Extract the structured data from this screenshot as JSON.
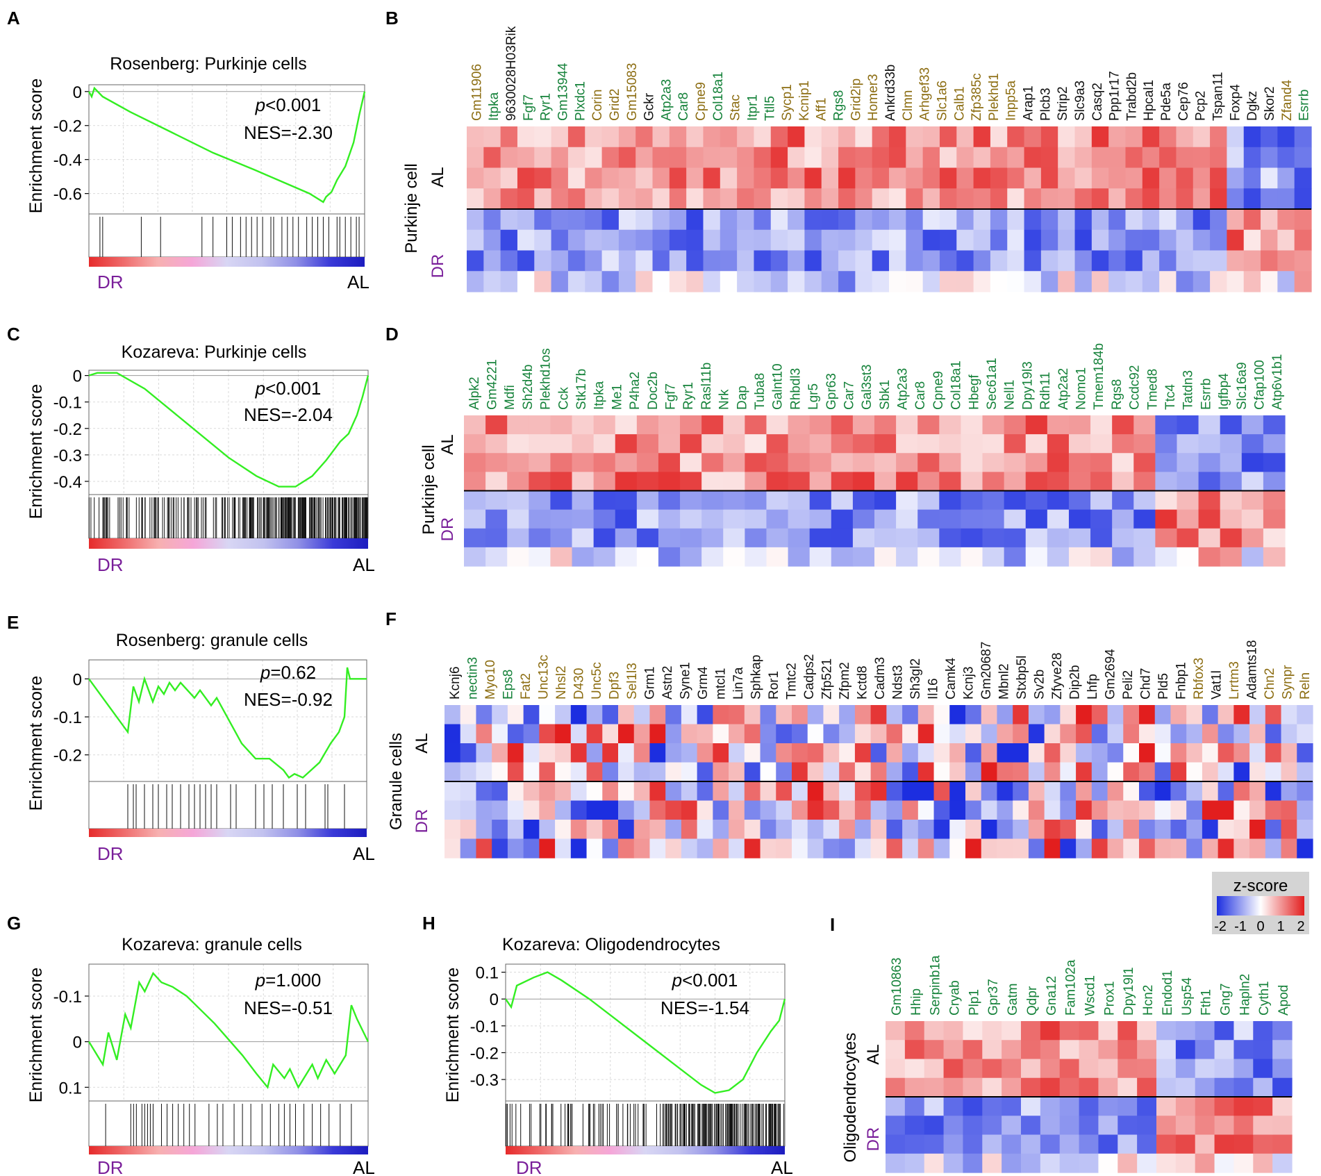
{
  "colors": {
    "curve": "#33ee22",
    "tick": "#111111",
    "dr_label": "#7a1f9a",
    "green_gene": "#15823a",
    "olive_gene": "#8c6d12",
    "black_gene": "#111111",
    "grid": "#d9d9d9",
    "z_low": "#1c2ee0",
    "z_mid": "#ffffff",
    "z_high": "#e21e1e"
  },
  "zscore_legend": {
    "title": "z-score",
    "ticks": [
      "-2",
      "-1",
      "0",
      "1",
      "2"
    ]
  },
  "chart_data": [
    {
      "id": "A",
      "panel_label": "A",
      "type": "line",
      "title": "Rosenberg: Purkinje cells",
      "ylabel": "Enrichment score",
      "ylim": [
        -0.72,
        0.04
      ],
      "invert_y": false,
      "y_ticks": [
        "0",
        "-0.2",
        "-0.4",
        "-0.6"
      ],
      "y_tick_values": [
        0,
        -0.2,
        -0.4,
        -0.6
      ],
      "stat_p_symbol": "p",
      "stat_p_rest": "<0.001",
      "stat_nes": "NES=-2.30",
      "left_label": "DR",
      "right_label": "AL",
      "curve": [
        [
          0,
          0
        ],
        [
          0.01,
          -0.03
        ],
        [
          0.02,
          0.02
        ],
        [
          0.05,
          -0.03
        ],
        [
          0.15,
          -0.12
        ],
        [
          0.3,
          -0.24
        ],
        [
          0.45,
          -0.36
        ],
        [
          0.6,
          -0.46
        ],
        [
          0.7,
          -0.53
        ],
        [
          0.8,
          -0.6
        ],
        [
          0.85,
          -0.65
        ],
        [
          0.86,
          -0.62
        ],
        [
          0.88,
          -0.59
        ],
        [
          0.9,
          -0.52
        ],
        [
          0.93,
          -0.44
        ],
        [
          0.96,
          -0.3
        ],
        [
          0.98,
          -0.14
        ],
        [
          1.0,
          0.0
        ]
      ],
      "hit_positions": [
        0.04,
        0.05,
        0.19,
        0.26,
        0.41,
        0.45,
        0.5,
        0.52,
        0.55,
        0.57,
        0.59,
        0.61,
        0.63,
        0.66,
        0.67,
        0.7,
        0.72,
        0.74,
        0.76,
        0.79,
        0.81,
        0.83,
        0.85,
        0.87,
        0.9,
        0.91,
        0.93,
        0.95,
        0.97,
        0.98
      ],
      "ranking_gradient": [
        "#e62b2b",
        "#ef6b6b",
        "#f7b0b0",
        "#f5a6d8",
        "#d8d6f4",
        "#c2c2ef",
        "#9090e6",
        "#3a3ad8",
        "#1c1cbf"
      ]
    },
    {
      "id": "C",
      "panel_label": "C",
      "type": "line",
      "title": "Kozareva: Purkinje cells",
      "ylabel": "Enrichment score",
      "ylim": [
        -0.45,
        0.02
      ],
      "invert_y": false,
      "y_ticks": [
        "0",
        "-0.1",
        "-0.2",
        "-0.3",
        "-0.4"
      ],
      "y_tick_values": [
        0,
        -0.1,
        -0.2,
        -0.3,
        -0.4
      ],
      "stat_p_symbol": "p",
      "stat_p_rest": "<0.001",
      "stat_nes": "NES=-2.04",
      "left_label": "DR",
      "right_label": "AL",
      "curve": [
        [
          0,
          0
        ],
        [
          0.03,
          0.01
        ],
        [
          0.1,
          0.01
        ],
        [
          0.2,
          -0.05
        ],
        [
          0.35,
          -0.18
        ],
        [
          0.5,
          -0.31
        ],
        [
          0.6,
          -0.38
        ],
        [
          0.68,
          -0.42
        ],
        [
          0.74,
          -0.42
        ],
        [
          0.8,
          -0.38
        ],
        [
          0.85,
          -0.32
        ],
        [
          0.9,
          -0.25
        ],
        [
          0.93,
          -0.22
        ],
        [
          0.96,
          -0.15
        ],
        [
          0.98,
          -0.08
        ],
        [
          1.0,
          0.0
        ]
      ],
      "hit_count": 280,
      "ranking_gradient": [
        "#e62b2b",
        "#ef6b6b",
        "#f7b0b0",
        "#f5a6d8",
        "#d8d6f4",
        "#c2c2ef",
        "#9090e6",
        "#3a3ad8",
        "#1c1cbf"
      ]
    },
    {
      "id": "E",
      "panel_label": "E",
      "type": "line",
      "title": "Rosenberg: granule cells",
      "ylabel": "Enrichment score",
      "ylim": [
        -0.27,
        0.05
      ],
      "invert_y": false,
      "y_ticks": [
        "0",
        "-0.1",
        "-0.2"
      ],
      "y_tick_values": [
        0,
        -0.1,
        -0.2
      ],
      "stat_p_symbol": "p",
      "stat_p_rest": "=0.62",
      "stat_nes": "NES=-0.92",
      "left_label": "DR",
      "right_label": "AL",
      "curve": [
        [
          0,
          0
        ],
        [
          0.14,
          -0.14
        ],
        [
          0.16,
          -0.02
        ],
        [
          0.18,
          -0.06
        ],
        [
          0.2,
          0.0
        ],
        [
          0.23,
          -0.06
        ],
        [
          0.25,
          -0.02
        ],
        [
          0.27,
          -0.04
        ],
        [
          0.29,
          -0.01
        ],
        [
          0.31,
          -0.03
        ],
        [
          0.33,
          -0.01
        ],
        [
          0.38,
          -0.05
        ],
        [
          0.4,
          -0.03
        ],
        [
          0.44,
          -0.07
        ],
        [
          0.46,
          -0.05
        ],
        [
          0.55,
          -0.17
        ],
        [
          0.6,
          -0.21
        ],
        [
          0.65,
          -0.21
        ],
        [
          0.7,
          -0.24
        ],
        [
          0.72,
          -0.26
        ],
        [
          0.74,
          -0.25
        ],
        [
          0.77,
          -0.26
        ],
        [
          0.8,
          -0.24
        ],
        [
          0.83,
          -0.22
        ],
        [
          0.87,
          -0.17
        ],
        [
          0.9,
          -0.14
        ],
        [
          0.92,
          -0.1
        ],
        [
          0.93,
          0.03
        ],
        [
          0.94,
          0.0
        ],
        [
          1.0,
          0.0
        ]
      ],
      "hit_positions": [
        0.14,
        0.16,
        0.17,
        0.2,
        0.23,
        0.25,
        0.28,
        0.3,
        0.33,
        0.36,
        0.38,
        0.4,
        0.42,
        0.44,
        0.46,
        0.51,
        0.53,
        0.6,
        0.63,
        0.66,
        0.7,
        0.75,
        0.78,
        0.85,
        0.86,
        0.92
      ],
      "ranking_gradient": [
        "#e62b2b",
        "#ef6b6b",
        "#f7b0b0",
        "#f5a6d8",
        "#d8d6f4",
        "#c2c2ef",
        "#9090e6",
        "#3a3ad8",
        "#1c1cbf"
      ]
    },
    {
      "id": "G",
      "panel_label": "G",
      "type": "line",
      "title": "Kozareva: granule cells",
      "ylabel": "Enrichment score",
      "ylim": [
        -0.17,
        0.13
      ],
      "invert_y": true,
      "y_ticks": [
        "-0.1",
        "0",
        "0.1"
      ],
      "y_tick_values": [
        -0.1,
        0,
        0.1
      ],
      "stat_p_symbol": "p",
      "stat_p_rest": "=1.000",
      "stat_nes": "NES=-0.51",
      "left_label": "DR",
      "right_label": "AL",
      "curve": [
        [
          0,
          0
        ],
        [
          0.05,
          0.05
        ],
        [
          0.07,
          -0.02
        ],
        [
          0.1,
          0.04
        ],
        [
          0.13,
          -0.06
        ],
        [
          0.15,
          -0.03
        ],
        [
          0.18,
          -0.13
        ],
        [
          0.2,
          -0.11
        ],
        [
          0.23,
          -0.15
        ],
        [
          0.26,
          -0.13
        ],
        [
          0.3,
          -0.12
        ],
        [
          0.35,
          -0.1
        ],
        [
          0.4,
          -0.07
        ],
        [
          0.45,
          -0.04
        ],
        [
          0.55,
          0.03
        ],
        [
          0.6,
          0.07
        ],
        [
          0.64,
          0.1
        ],
        [
          0.66,
          0.05
        ],
        [
          0.7,
          0.08
        ],
        [
          0.72,
          0.06
        ],
        [
          0.75,
          0.1
        ],
        [
          0.8,
          0.05
        ],
        [
          0.82,
          0.08
        ],
        [
          0.85,
          0.04
        ],
        [
          0.88,
          0.07
        ],
        [
          0.92,
          0.03
        ],
        [
          0.94,
          -0.08
        ],
        [
          0.96,
          -0.05
        ],
        [
          1.0,
          0.0
        ]
      ],
      "hit_positions": [
        0.06,
        0.15,
        0.16,
        0.17,
        0.19,
        0.2,
        0.21,
        0.22,
        0.23,
        0.26,
        0.28,
        0.3,
        0.32,
        0.34,
        0.36,
        0.38,
        0.43,
        0.46,
        0.48,
        0.52,
        0.55,
        0.58,
        0.62,
        0.65,
        0.68,
        0.7,
        0.72,
        0.74,
        0.77,
        0.8,
        0.83,
        0.86,
        0.9,
        0.94
      ],
      "ranking_gradient": [
        "#e62b2b",
        "#ef6b6b",
        "#f7b0b0",
        "#f5a6d8",
        "#d8d6f4",
        "#c2c2ef",
        "#9090e6",
        "#3a3ad8",
        "#1c1cbf"
      ]
    },
    {
      "id": "H",
      "panel_label": "H",
      "type": "line",
      "title": "Kozareva: Oligodendrocytes",
      "ylabel": "Enrichment score",
      "ylim": [
        -0.38,
        0.13
      ],
      "invert_y": false,
      "y_ticks": [
        "0.1",
        "0",
        "-0.1",
        "-0.2",
        "-0.3"
      ],
      "y_tick_values": [
        0.1,
        0,
        -0.1,
        -0.2,
        -0.3
      ],
      "stat_p_symbol": "p",
      "stat_p_rest": "<0.001",
      "stat_nes": "NES=-1.54",
      "left_label": "DR",
      "right_label": "AL",
      "curve": [
        [
          0,
          0
        ],
        [
          0.02,
          -0.03
        ],
        [
          0.04,
          0.05
        ],
        [
          0.1,
          0.08
        ],
        [
          0.15,
          0.1
        ],
        [
          0.2,
          0.07
        ],
        [
          0.3,
          0.0
        ],
        [
          0.4,
          -0.08
        ],
        [
          0.5,
          -0.16
        ],
        [
          0.6,
          -0.24
        ],
        [
          0.7,
          -0.32
        ],
        [
          0.75,
          -0.35
        ],
        [
          0.8,
          -0.34
        ],
        [
          0.85,
          -0.3
        ],
        [
          0.9,
          -0.2
        ],
        [
          0.95,
          -0.12
        ],
        [
          0.98,
          -0.08
        ],
        [
          1.0,
          0.0
        ]
      ],
      "hit_count": 200,
      "ranking_gradient": [
        "#e62b2b",
        "#ef6b6b",
        "#f7b0b0",
        "#f5a6d8",
        "#d8d6f4",
        "#c2c2ef",
        "#9090e6",
        "#3a3ad8",
        "#1c1cbf"
      ]
    },
    {
      "id": "B",
      "panel_label": "B",
      "type": "heatmap",
      "seed": 11,
      "group_title": "Purkinje cell",
      "row_group_labels": [
        "AL",
        "DR"
      ],
      "rows_per_group": 4,
      "n_cols": 50,
      "al_up_cols": 45,
      "genes": [
        "Gm11906",
        "Itpka",
        "9630028H03Rik",
        "Fgf7",
        "Ryr1",
        "Gm13944",
        "Plxdc1",
        "Corin",
        "Grid2",
        "Gm15083",
        "Gckr",
        "Atp2a3",
        "Car8",
        "Cpne9",
        "Col18a1",
        "Stac",
        "Itpr1",
        "Ttll5",
        "Sycp1",
        "Kcnip1",
        "Aff1",
        "Rgs8",
        "Grid2ip",
        "Homer3",
        "Ankrd33b",
        "Clmn",
        "Arhgef33",
        "Slc1a6",
        "Calb1",
        "Zfp385c",
        "Plekhd1",
        "Inpp5a",
        "Arap1",
        "Plcb3",
        "Strip2",
        "Slc9a3",
        "Casq2",
        "Ppp1r17",
        "Trabd2b",
        "Hpcal1",
        "Pde5a",
        "Cep76",
        "Pcp2",
        "Tspan11",
        "Foxp4",
        "Dgkz",
        "Skor2",
        "Zfand4",
        "Esrrb"
      ],
      "gene_colors": [
        "olive",
        "green",
        "black",
        "green",
        "green",
        "green",
        "green",
        "olive",
        "olive",
        "olive",
        "black",
        "green",
        "green",
        "olive",
        "green",
        "olive",
        "green",
        "green",
        "olive",
        "olive",
        "olive",
        "green",
        "olive",
        "olive",
        "black",
        "olive",
        "olive",
        "olive",
        "olive",
        "olive",
        "olive",
        "olive",
        "black",
        "black",
        "black",
        "black",
        "black",
        "black",
        "black",
        "black",
        "black",
        "black",
        "black",
        "black",
        "black",
        "black",
        "black",
        "olive",
        "green"
      ]
    },
    {
      "id": "D",
      "panel_label": "D",
      "type": "heatmap",
      "seed": 23,
      "group_title": "Purkinje cell",
      "row_group_labels": [
        "AL",
        "DR"
      ],
      "rows_per_group": 4,
      "n_cols": 38,
      "al_up_cols": 32,
      "genes": [
        "Alpk2",
        "Gm4221",
        "Mdfi",
        "Sh2d4b",
        "Plekhd1os",
        "Cck",
        "Stk17b",
        "Itpka",
        "Me1",
        "P4ha2",
        "Doc2b",
        "Fgf7",
        "Ryr1",
        "Rasl11b",
        "Nrk",
        "Dap",
        "Tuba8",
        "Galnt10",
        "Rhbdl3",
        "Lgr5",
        "Gpr63",
        "Car7",
        "Gal3st3",
        "Sbk1",
        "Atp2a3",
        "Car8",
        "Cpne9",
        "Col18a1",
        "Hbegf",
        "Sec61a1",
        "Nell1",
        "Dpy19l3",
        "Rdh11",
        "Atp2a2",
        "Nomo1",
        "Tmem184b",
        "Rgs8",
        "Ccdc92",
        "Tmed8",
        "Ttc4",
        "Tatdn3",
        "Esrrb",
        "Igfbp4",
        "Slc16a9",
        "Cfap100",
        "Atp6v1b1"
      ],
      "gene_colors": [
        "green",
        "green",
        "green",
        "green",
        "green",
        "green",
        "green",
        "green",
        "green",
        "green",
        "green",
        "green",
        "green",
        "green",
        "green",
        "green",
        "green",
        "green",
        "green",
        "green",
        "green",
        "green",
        "green",
        "green",
        "green",
        "green",
        "green",
        "green",
        "green",
        "green",
        "green",
        "green",
        "green",
        "green",
        "green",
        "green",
        "green",
        "green",
        "green",
        "green",
        "green",
        "green",
        "green",
        "green",
        "green",
        "green"
      ]
    },
    {
      "id": "F",
      "panel_label": "F",
      "type": "heatmap",
      "seed": 37,
      "group_title": "Granule cells",
      "row_group_labels": [
        "AL",
        "DR"
      ],
      "rows_per_group": 4,
      "n_cols": 55,
      "al_up_cols": 0,
      "genes": [
        "Kcnj6",
        "nectin3",
        "Myo10",
        "Eps8",
        "Fat2",
        "Unc13c",
        "Nhsl2",
        "D430",
        "Unc5c",
        "Dpf3",
        "Sel1l3",
        "Grm1",
        "Astn2",
        "Syne1",
        "Grm4",
        "mtcl1",
        "Lin7a",
        "Sphkap",
        "Ror1",
        "Tmtc2",
        "Cadps2",
        "Zfp521",
        "Zfpm2",
        "Kctd8",
        "Cadm3",
        "Ndst3",
        "Sh3gl2",
        "Il16",
        "Camk4",
        "Kcnj3",
        "Gm20687",
        "Mbnl2",
        "Stxbp5l",
        "Sv2b",
        "Zfyve28",
        "Dip2b",
        "Lhfp",
        "Gm2694",
        "Peli2",
        "Chd7",
        "Pld5",
        "Fnbp1",
        "Rbfox3",
        "Vat1l",
        "Lrrtm3",
        "Adamts18",
        "Chn2",
        "Synpr",
        "Reln"
      ],
      "gene_colors": [
        "black",
        "green",
        "olive",
        "green",
        "olive",
        "olive",
        "olive",
        "olive",
        "olive",
        "olive",
        "olive",
        "black",
        "black",
        "black",
        "black",
        "black",
        "black",
        "black",
        "black",
        "black",
        "black",
        "black",
        "black",
        "black",
        "black",
        "black",
        "black",
        "black",
        "black",
        "black",
        "black",
        "black",
        "black",
        "black",
        "black",
        "black",
        "black",
        "black",
        "black",
        "black",
        "black",
        "black",
        "olive",
        "black",
        "olive",
        "black",
        "olive",
        "olive",
        "olive"
      ]
    },
    {
      "id": "I",
      "panel_label": "I",
      "type": "heatmap",
      "seed": 53,
      "group_title": "Oligodendrocytes",
      "row_group_labels": [
        "AL",
        "DR"
      ],
      "rows_per_group": 4,
      "n_cols": 21,
      "al_up_cols": 14,
      "genes": [
        "Gm10863",
        "Hhip",
        "Serpinb1a",
        "Cryab",
        "Plp1",
        "Gpr37",
        "Gatm",
        "Qdpr",
        "Gna12",
        "Fam102a",
        "Wscd1",
        "Prox1",
        "Dpy19l1",
        "Hcn2",
        "Endod1",
        "Usp54",
        "Fth1",
        "Gng7",
        "Hapln2",
        "Cyth1",
        "Apod"
      ],
      "gene_colors": [
        "green",
        "green",
        "green",
        "green",
        "green",
        "green",
        "green",
        "green",
        "green",
        "green",
        "green",
        "green",
        "green",
        "green",
        "green",
        "green",
        "green",
        "green",
        "green",
        "green",
        "green"
      ]
    }
  ]
}
